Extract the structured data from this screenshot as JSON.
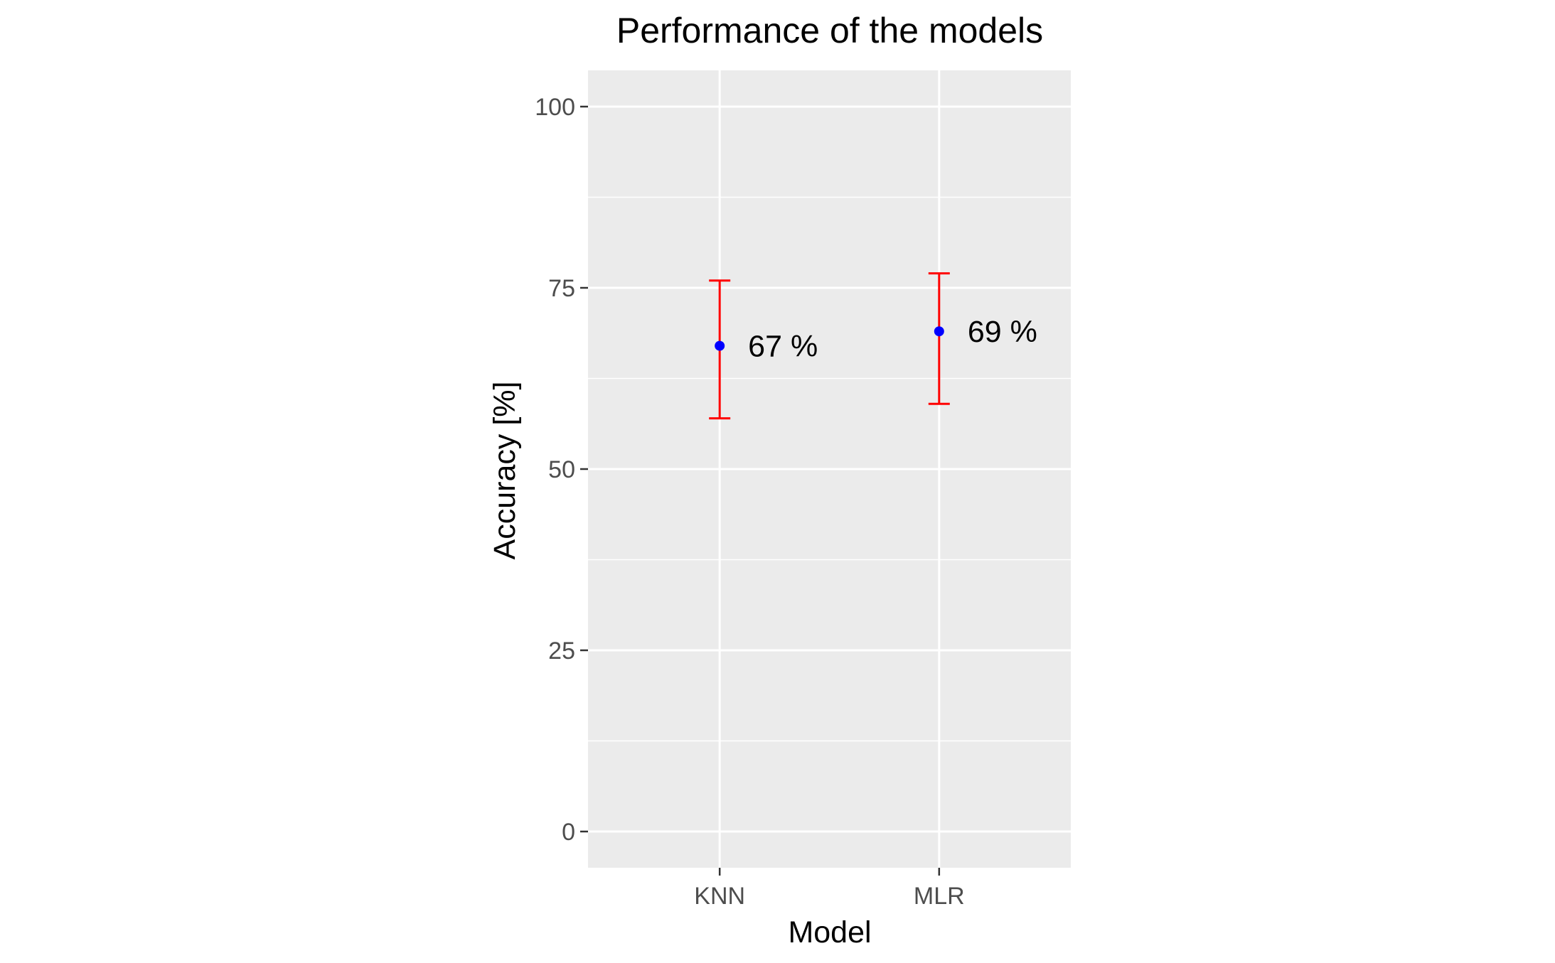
{
  "chart_data": {
    "type": "scatter",
    "title": "Performance of the models",
    "xlabel": "Model",
    "ylabel": "Accuracy [%]",
    "categories": [
      "KNN",
      "MLR"
    ],
    "values": [
      67,
      69
    ],
    "error_low": [
      57,
      59
    ],
    "error_high": [
      76,
      77
    ],
    "point_labels": [
      "67 %",
      "69 %"
    ],
    "ylim": [
      -5,
      105
    ],
    "y_ticks": [
      0,
      25,
      50,
      75,
      100
    ],
    "y_tick_labels": [
      "0",
      "25",
      "50",
      "75",
      "100"
    ],
    "grid": true,
    "legend": "none",
    "colors": {
      "panel": "#EBEBEB",
      "grid": "#FFFFFF",
      "point": "#0000FF",
      "errorbar": "#FF0000",
      "tick_text": "#4D4D4D",
      "text": "#000000"
    }
  }
}
